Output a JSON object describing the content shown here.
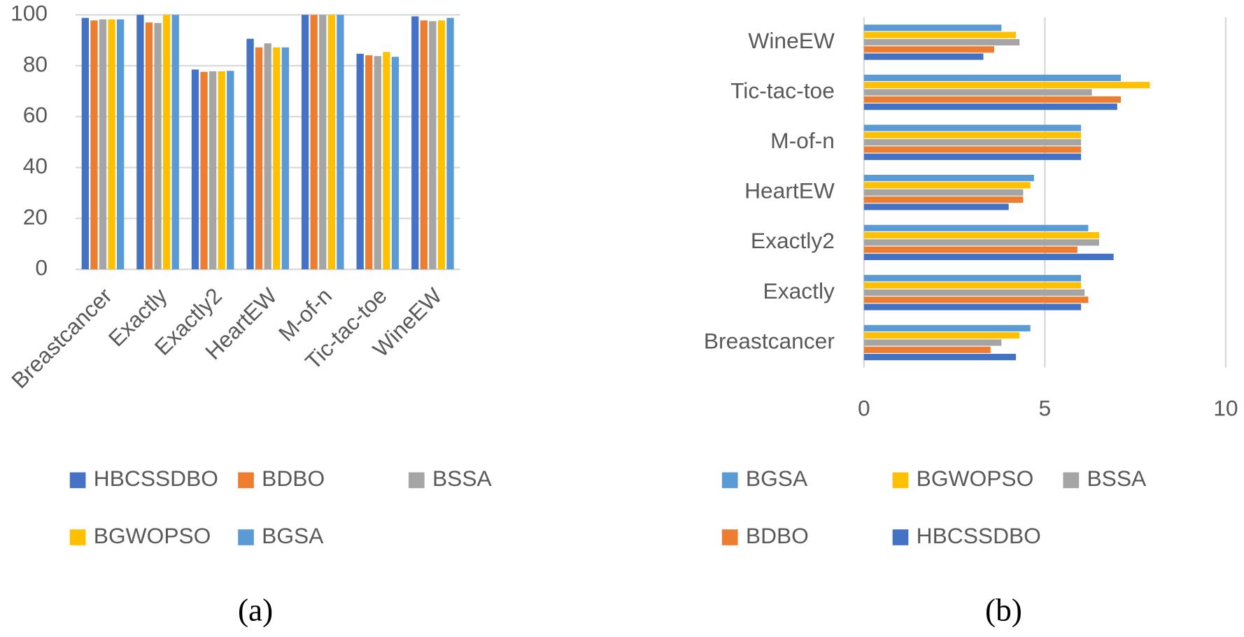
{
  "chart_data": [
    {
      "type": "bar",
      "caption": "(a)",
      "horizontal": false,
      "grid": true,
      "legend": "bottom",
      "categories": [
        "Breastcancer",
        "Exactly",
        "Exactly2",
        "HeartEW",
        "M-of-n",
        "Tic-tac-toe",
        "WineEW"
      ],
      "ylim": [
        0,
        100
      ],
      "yticks": [
        0,
        20,
        40,
        60,
        80,
        100
      ],
      "series": [
        {
          "name": "HBCSSDBO",
          "color": "#4472c4",
          "values": [
            98.8,
            100,
            78.5,
            90.6,
            100,
            84.7,
            99.4
          ]
        },
        {
          "name": "BDBO",
          "color": "#ed7d31",
          "values": [
            97.8,
            97,
            77.6,
            87.2,
            100,
            84.1,
            97.8
          ]
        },
        {
          "name": "BSSA",
          "color": "#a5a5a5",
          "values": [
            98.2,
            96.8,
            77.8,
            88.8,
            100,
            83.8,
            97.5
          ]
        },
        {
          "name": "BGWOPSO",
          "color": "#ffc000",
          "values": [
            98.2,
            100,
            77.8,
            87.2,
            100,
            85.4,
            97.8
          ]
        },
        {
          "name": "BGSA",
          "color": "#5b9bd5",
          "values": [
            98.2,
            100,
            78,
            87.2,
            100,
            83.5,
            98.8
          ]
        }
      ]
    },
    {
      "type": "bar",
      "caption": "(b)",
      "horizontal": true,
      "grid": true,
      "legend": "bottom",
      "categories": [
        "Breastcancer",
        "Exactly",
        "Exactly2",
        "HeartEW",
        "M-of-n",
        "Tic-tac-toe",
        "WineEW"
      ],
      "xlim": [
        0,
        10
      ],
      "xticks": [
        0,
        5,
        10
      ],
      "series": [
        {
          "name": "BGSA",
          "color": "#5b9bd5",
          "values": [
            4.6,
            6,
            6.2,
            4.7,
            6,
            7.1,
            3.8
          ]
        },
        {
          "name": "BGWOPSO",
          "color": "#ffc000",
          "values": [
            4.3,
            6,
            6.5,
            4.6,
            6,
            7.9,
            4.2
          ]
        },
        {
          "name": "BSSA",
          "color": "#a5a5a5",
          "values": [
            3.8,
            6.1,
            6.5,
            4.4,
            6,
            6.3,
            4.3
          ]
        },
        {
          "name": "BDBO",
          "color": "#ed7d31",
          "values": [
            3.5,
            6.2,
            5.9,
            4.4,
            6,
            7.1,
            3.6
          ]
        },
        {
          "name": "HBCSSDBO",
          "color": "#4472c4",
          "values": [
            4.2,
            6,
            6.9,
            4,
            6,
            7,
            3.3
          ]
        }
      ]
    }
  ]
}
